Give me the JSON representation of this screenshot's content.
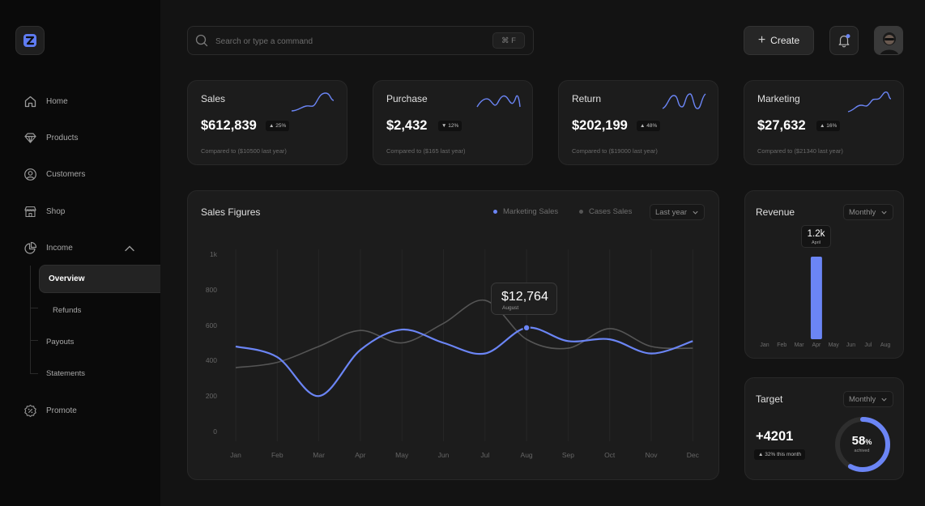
{
  "sidebar": {
    "items": [
      {
        "label": "Home"
      },
      {
        "label": "Products"
      },
      {
        "label": "Customers"
      },
      {
        "label": "Shop"
      },
      {
        "label": "Income"
      },
      {
        "label": "Promote"
      }
    ],
    "income_sub": [
      {
        "label": "Overview"
      },
      {
        "label": "Refunds"
      },
      {
        "label": "Payouts"
      },
      {
        "label": "Statements"
      }
    ]
  },
  "topbar": {
    "search_placeholder": "Search or type a command",
    "search_shortcut": "⌘ F",
    "create_label": "Create"
  },
  "stats": [
    {
      "title": "Sales",
      "value": "$612,839",
      "change": "25%",
      "direction": "up",
      "compare": "Compared to ($10500 last year)"
    },
    {
      "title": "Purchase",
      "value": "$2,432",
      "change": "12%",
      "direction": "down",
      "compare": "Compared to ($165 last year)"
    },
    {
      "title": "Return",
      "value": "$202,199",
      "change": "48%",
      "direction": "up",
      "compare": "Compared to ($19000 last year)"
    },
    {
      "title": "Marketing",
      "value": "$27,632",
      "change": "16%",
      "direction": "up",
      "compare": "Compared to ($21340 last year)"
    }
  ],
  "sales_figures": {
    "title": "Sales Figures",
    "legend": [
      {
        "label": "Marketing Sales",
        "color": "#6b85f5"
      },
      {
        "label": "Cases Sales",
        "color": "#555555"
      }
    ],
    "period": "Last year",
    "tooltip": {
      "value": "$12,764",
      "label": "August"
    }
  },
  "revenue": {
    "title": "Revenue",
    "period": "Monthly",
    "tooltip": {
      "value": "1.2k",
      "label": "April"
    }
  },
  "target": {
    "title": "Target",
    "period": "Monthly",
    "value": "+4201",
    "badge": "32% this month",
    "percent_value": 58,
    "percent": "58",
    "percent_unit": "%",
    "percent_label": "achived"
  },
  "colors": {
    "accent": "#6b85f5",
    "secondary_line": "#555555"
  },
  "chart_data": [
    {
      "type": "line",
      "title": "Sales Figures",
      "categories": [
        "Jan",
        "Feb",
        "Mar",
        "Apr",
        "May",
        "Jun",
        "Jul",
        "Aug",
        "Sep",
        "Oct",
        "Nov",
        "Dec"
      ],
      "y_ticks": [
        "1k",
        "800",
        "600",
        "400",
        "200",
        "0"
      ],
      "ylim": [
        0,
        1000
      ],
      "series": [
        {
          "name": "Marketing Sales",
          "values": [
            480,
            420,
            200,
            460,
            575,
            500,
            440,
            585,
            510,
            520,
            440,
            510
          ]
        },
        {
          "name": "Cases Sales",
          "values": [
            360,
            390,
            480,
            570,
            500,
            610,
            740,
            520,
            470,
            580,
            480,
            470
          ]
        }
      ]
    },
    {
      "type": "bar",
      "title": "Revenue",
      "categories": [
        "Jan",
        "Feb",
        "Mar",
        "Apr",
        "May",
        "Jun",
        "Jul",
        "Aug"
      ],
      "values": [
        0,
        0,
        0,
        1.2,
        0,
        0,
        0,
        0
      ],
      "ylim": [
        0,
        1.6
      ]
    }
  ]
}
